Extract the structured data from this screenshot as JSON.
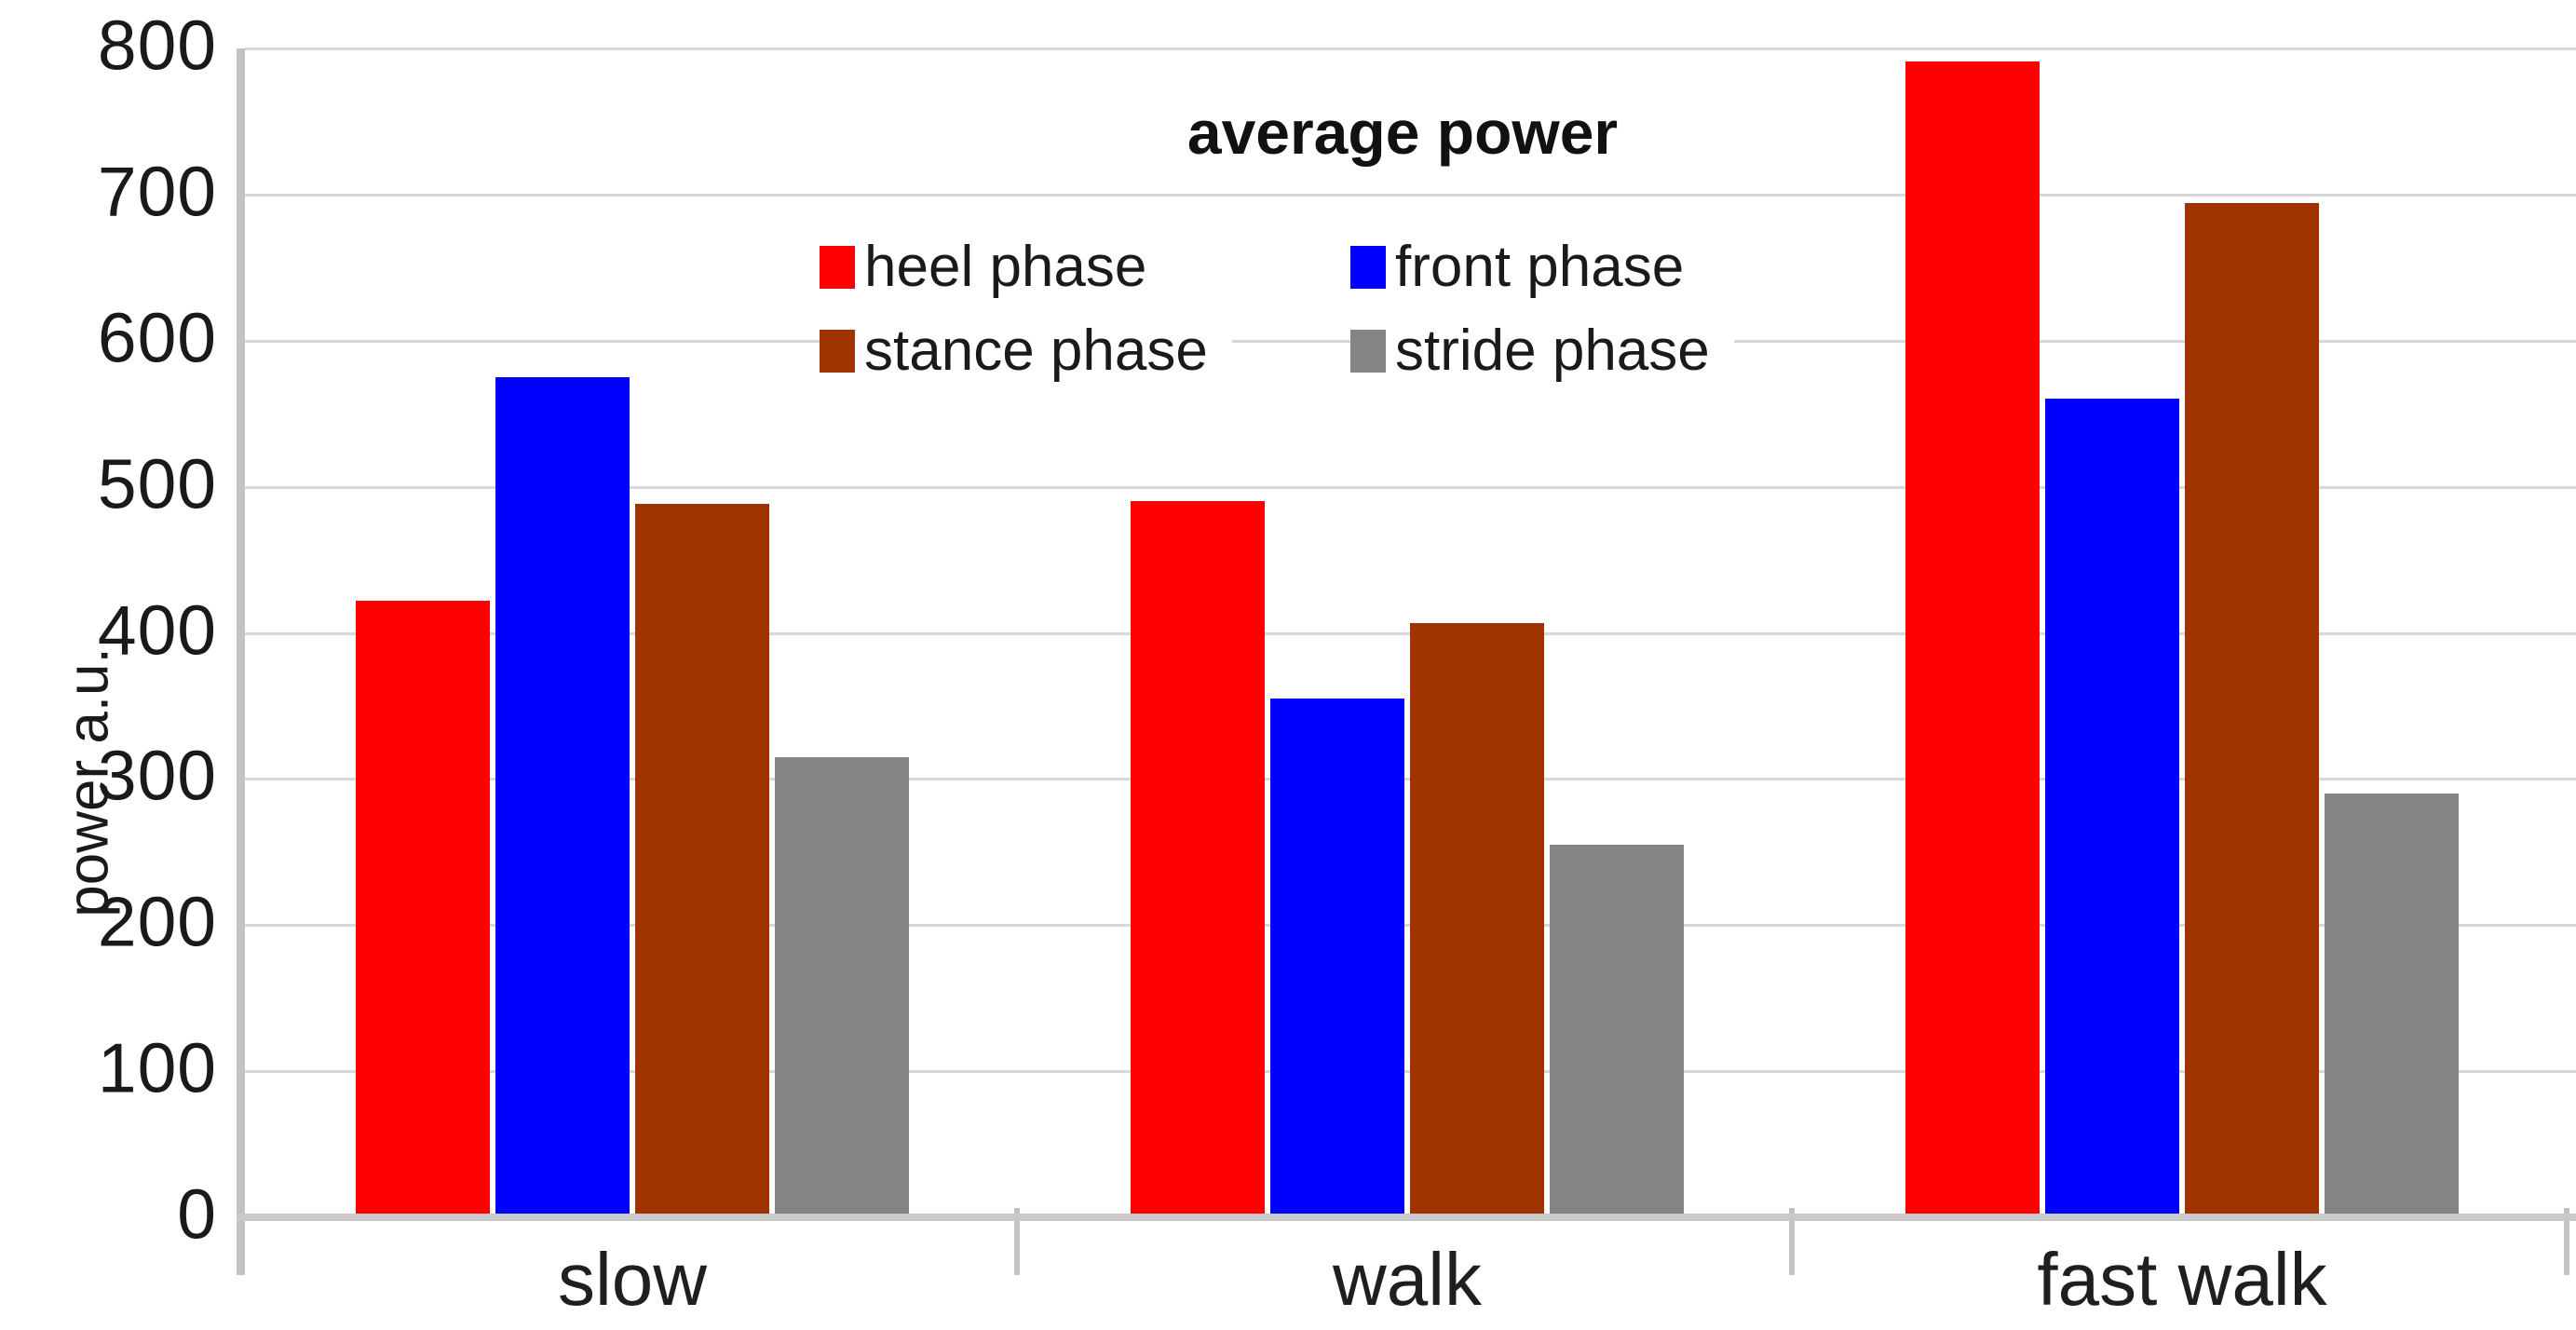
{
  "chart_data": {
    "type": "bar",
    "title": "average power",
    "xlabel": "",
    "ylabel": "power a.u.",
    "ylim": [
      0,
      800
    ],
    "y_ticks": [
      0,
      100,
      200,
      300,
      400,
      500,
      600,
      700,
      800
    ],
    "grid": true,
    "legend_position": "top-center-inside",
    "categories": [
      "slow",
      "walk",
      "fast walk"
    ],
    "series": [
      {
        "name": "heel phase",
        "color": "#ff0000",
        "values": [
          422,
          490,
          791
        ]
      },
      {
        "name": "front phase",
        "color": "#0000ff",
        "values": [
          575,
          355,
          560
        ]
      },
      {
        "name": "stance phase",
        "color": "#a03400",
        "values": [
          488,
          407,
          694
        ]
      },
      {
        "name": "stride phase",
        "color": "#848484",
        "values": [
          315,
          255,
          290
        ]
      }
    ]
  },
  "colors": {
    "gridline": "#d8d8d8",
    "axis_line": "#c3c3c3",
    "zero_line": "#c9c9c9",
    "text": "#1a1a1a"
  }
}
